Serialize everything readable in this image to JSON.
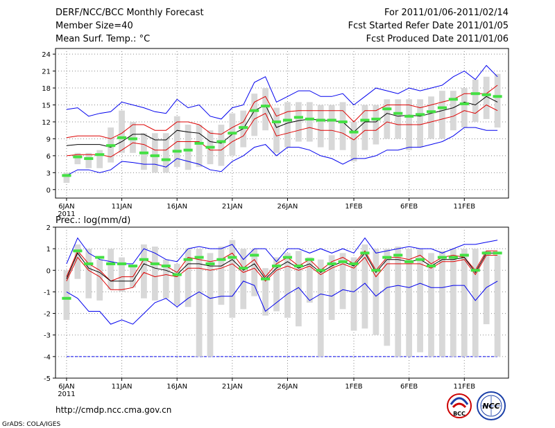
{
  "header": {
    "title": "DERF/NCC/BCC Monthly Forecast",
    "member_size": "Member Size=40",
    "variable": "Mean Surf. Temp.: °C",
    "period": "For 2011/01/06-2011/02/14",
    "start_date": "Fcst Started Refer Date 2011/01/05",
    "produced_date": "Fcst Produced Date 2011/01/06"
  },
  "footer": {
    "url": "http://cmdp.ncc.cma.gov.cn",
    "credit": "GrADS: COLA/IGES",
    "logo_bcc": "BCC",
    "logo_ncc": "NCC"
  },
  "colors": {
    "box": "#d8d8d8",
    "median": "#44e044",
    "mean": "#000000",
    "spread": "#dd0000",
    "extreme": "#0000ee",
    "grid": "#888888"
  },
  "chart_data": [
    {
      "type": "line",
      "name": "temperature",
      "title": "",
      "ylabel": "°C",
      "ylim": [
        -1.5,
        25
      ],
      "yticks": [
        0,
        3,
        6,
        9,
        12,
        15,
        18,
        21,
        24
      ],
      "x_ticks": [
        {
          "day": 0,
          "label": "6JAN",
          "sub": "2011"
        },
        {
          "day": 5,
          "label": "11JAN"
        },
        {
          "day": 10,
          "label": "16JAN"
        },
        {
          "day": 15,
          "label": "21JAN"
        },
        {
          "day": 20,
          "label": "26JAN"
        },
        {
          "day": 26,
          "label": "1FEB"
        },
        {
          "day": 31,
          "label": "6FEB"
        },
        {
          "day": 36,
          "label": "11FEB"
        }
      ],
      "xlim": [
        -1,
        40
      ],
      "days": [
        0,
        1,
        2,
        3,
        4,
        5,
        6,
        7,
        8,
        9,
        10,
        11,
        12,
        13,
        14,
        15,
        16,
        17,
        18,
        19,
        20,
        21,
        22,
        23,
        24,
        25,
        26,
        27,
        28,
        29,
        30,
        31,
        32,
        33,
        34,
        35,
        36,
        37,
        38,
        39
      ],
      "max": [
        14.2,
        14.5,
        13.0,
        13.5,
        13.8,
        15.5,
        15.0,
        14.5,
        13.8,
        13.5,
        16.0,
        14.5,
        15.0,
        13.0,
        12.5,
        14.5,
        15.0,
        19.0,
        20.0,
        15.5,
        16.5,
        17.5,
        17.5,
        16.5,
        16.5,
        17.0,
        15.0,
        16.5,
        18.0,
        17.5,
        17.0,
        18.0,
        17.5,
        18.0,
        18.5,
        20.0,
        21.0,
        19.5,
        22.0,
        20.0
      ],
      "upper": [
        9.2,
        9.5,
        9.5,
        9.5,
        9.0,
        10.0,
        11.5,
        11.5,
        10.5,
        10.5,
        12.0,
        12.0,
        11.5,
        10.0,
        9.8,
        11.0,
        12.0,
        15.5,
        16.5,
        13.0,
        13.8,
        14.0,
        14.0,
        14.0,
        14.0,
        14.0,
        12.0,
        14.0,
        14.0,
        15.0,
        15.0,
        15.0,
        14.5,
        15.0,
        15.5,
        16.0,
        17.0,
        17.0,
        17.0,
        18.5
      ],
      "mean": [
        7.8,
        8.0,
        8.0,
        8.0,
        7.5,
        8.5,
        9.8,
        9.8,
        8.8,
        8.8,
        10.5,
        10.2,
        10.0,
        8.5,
        8.2,
        9.8,
        10.8,
        14.0,
        15.0,
        11.0,
        11.8,
        12.2,
        12.5,
        12.3,
        12.2,
        12.0,
        10.2,
        12.0,
        12.0,
        13.5,
        13.0,
        13.2,
        13.0,
        13.5,
        14.0,
        14.5,
        15.5,
        15.0,
        16.5,
        15.5
      ],
      "lower": [
        6.0,
        6.2,
        6.2,
        6.2,
        5.8,
        7.0,
        8.3,
        8.0,
        7.0,
        7.0,
        8.5,
        8.5,
        8.5,
        7.0,
        7.0,
        8.5,
        9.5,
        12.5,
        13.5,
        9.5,
        10.0,
        10.5,
        11.0,
        10.5,
        10.5,
        10.0,
        8.8,
        10.5,
        10.5,
        12.0,
        11.5,
        11.5,
        11.5,
        12.0,
        12.5,
        13.0,
        14.0,
        13.5,
        15.0,
        14.0
      ],
      "min": [
        2.5,
        3.5,
        3.5,
        3.0,
        3.5,
        5.0,
        4.8,
        4.5,
        4.5,
        4.0,
        5.5,
        5.0,
        4.5,
        3.5,
        3.2,
        5.0,
        6.0,
        7.5,
        8.0,
        6.0,
        7.5,
        7.5,
        7.0,
        6.0,
        5.5,
        4.5,
        5.5,
        5.5,
        6.0,
        7.0,
        7.0,
        7.5,
        7.5,
        8.0,
        8.5,
        9.5,
        11.0,
        11.0,
        10.5,
        10.5
      ],
      "box_lo": [
        1.2,
        4.5,
        3.8,
        3.8,
        4.8,
        6.5,
        6.5,
        3.5,
        3.0,
        3.0,
        4.0,
        3.5,
        4.0,
        4.5,
        4.2,
        6.0,
        7.5,
        9.5,
        10.5,
        6.5,
        7.5,
        8.5,
        8.5,
        7.5,
        7.0,
        7.0,
        5.0,
        7.0,
        8.0,
        9.0,
        9.0,
        7.0,
        7.5,
        9.0,
        9.0,
        10.5,
        11.0,
        12.0,
        12.5,
        11.0
      ],
      "box_hi": [
        3.0,
        6.5,
        6.5,
        7.0,
        11.0,
        14.0,
        12.0,
        10.0,
        10.0,
        10.0,
        13.0,
        11.5,
        11.5,
        10.5,
        11.5,
        13.5,
        14.0,
        17.0,
        18.0,
        14.5,
        15.5,
        15.5,
        15.5,
        15.0,
        15.0,
        15.5,
        12.0,
        15.0,
        15.0,
        16.0,
        16.0,
        16.0,
        16.0,
        16.5,
        17.5,
        17.5,
        18.0,
        19.5,
        20.0,
        20.5
      ],
      "median": [
        2.5,
        5.8,
        5.5,
        6.2,
        7.8,
        9.2,
        9.0,
        6.5,
        6.0,
        5.3,
        6.8,
        7.0,
        8.2,
        7.5,
        8.5,
        10.0,
        11.0,
        14.0,
        14.8,
        12.0,
        12.3,
        12.8,
        12.5,
        12.3,
        12.3,
        12.0,
        10.2,
        12.3,
        12.5,
        14.3,
        13.5,
        13.0,
        13.3,
        13.8,
        14.5,
        16.0,
        15.2,
        17.0,
        16.8,
        16.5
      ]
    },
    {
      "type": "line",
      "name": "precipitation",
      "title": "Prec.: log(mm/d)",
      "ylabel": "log(mm/d)",
      "ylim": [
        -5,
        2
      ],
      "yticks": [
        -5,
        -4,
        -3,
        -2,
        -1,
        0,
        1,
        2
      ],
      "x_ticks": [
        {
          "day": 0,
          "label": "6JAN",
          "sub": "2011"
        },
        {
          "day": 5,
          "label": "11JAN"
        },
        {
          "day": 10,
          "label": "16JAN"
        },
        {
          "day": 15,
          "label": "21JAN"
        },
        {
          "day": 20,
          "label": "26JAN"
        },
        {
          "day": 26,
          "label": "1FEB"
        },
        {
          "day": 31,
          "label": "6FEB"
        },
        {
          "day": 36,
          "label": "11FEB"
        }
      ],
      "xlim": [
        -1,
        40
      ],
      "baseline": -4,
      "days": [
        0,
        1,
        2,
        3,
        4,
        5,
        6,
        7,
        8,
        9,
        10,
        11,
        12,
        13,
        14,
        15,
        16,
        17,
        18,
        19,
        20,
        21,
        22,
        23,
        24,
        25,
        26,
        27,
        28,
        29,
        30,
        31,
        32,
        33,
        34,
        35,
        36,
        37,
        38,
        39
      ],
      "max": [
        0.3,
        1.5,
        0.8,
        0.5,
        0.4,
        0.3,
        0.3,
        1.0,
        0.8,
        0.5,
        0.4,
        1.0,
        1.1,
        1.0,
        1.0,
        1.2,
        0.5,
        1.0,
        1.0,
        0.4,
        1.0,
        1.0,
        0.8,
        1.0,
        0.8,
        1.0,
        0.8,
        1.5,
        0.8,
        0.9,
        1.0,
        1.1,
        1.0,
        1.0,
        0.8,
        1.0,
        1.2,
        1.2,
        1.3,
        1.4
      ],
      "upper": [
        -0.3,
        0.9,
        0.3,
        0.0,
        -0.5,
        -0.3,
        -0.3,
        0.5,
        0.3,
        0.2,
        -0.1,
        0.6,
        0.5,
        0.4,
        0.5,
        0.8,
        0.1,
        0.5,
        -0.3,
        0.3,
        0.6,
        0.2,
        0.5,
        0.0,
        0.4,
        0.6,
        0.3,
        0.9,
        0.0,
        0.6,
        0.6,
        0.5,
        0.7,
        0.3,
        0.6,
        0.7,
        0.6,
        0.0,
        0.9,
        0.9
      ],
      "mean": [
        -0.4,
        0.8,
        0.1,
        -0.1,
        -0.5,
        -0.5,
        -0.5,
        0.3,
        0.1,
        0.0,
        -0.2,
        0.3,
        0.3,
        0.2,
        0.2,
        0.5,
        0.0,
        0.3,
        -0.4,
        0.1,
        0.4,
        0.1,
        0.3,
        -0.1,
        0.2,
        0.4,
        0.2,
        0.8,
        -0.1,
        0.5,
        0.5,
        0.4,
        0.5,
        0.2,
        0.5,
        0.5,
        0.6,
        -0.1,
        0.8,
        0.8
      ],
      "lower": [
        -0.5,
        0.6,
        0.0,
        -0.3,
        -0.9,
        -0.9,
        -0.8,
        -0.1,
        -0.3,
        -0.2,
        -0.3,
        0.1,
        0.1,
        0.0,
        0.1,
        0.3,
        -0.1,
        0.1,
        -0.5,
        0.0,
        0.2,
        0.0,
        0.2,
        -0.2,
        0.1,
        0.3,
        0.1,
        0.6,
        -0.3,
        0.3,
        0.3,
        0.3,
        0.3,
        0.1,
        0.4,
        0.4,
        0.5,
        -0.2,
        0.7,
        0.7
      ],
      "min": [
        -1.0,
        -1.3,
        -1.9,
        -1.9,
        -2.5,
        -2.3,
        -2.5,
        -2.0,
        -1.5,
        -1.3,
        -1.7,
        -1.3,
        -1.0,
        -1.3,
        -1.2,
        -1.2,
        -0.5,
        -0.7,
        -1.9,
        -1.5,
        -1.1,
        -0.8,
        -1.4,
        -1.1,
        -1.2,
        -0.9,
        -1.0,
        -0.6,
        -1.2,
        -0.8,
        -0.7,
        -0.8,
        -0.6,
        -0.8,
        -0.8,
        -0.7,
        -0.7,
        -1.4,
        -0.8,
        -0.5
      ],
      "box_lo": [
        -2.3,
        -0.4,
        -1.3,
        -1.4,
        -0.9,
        -1.0,
        -0.8,
        -1.3,
        -1.4,
        -1.3,
        -1.6,
        -1.7,
        -4.0,
        -4.0,
        -1.6,
        -2.2,
        -1.8,
        -1.2,
        -2.1,
        -1.9,
        -2.2,
        -2.6,
        -1.5,
        -4.0,
        -2.3,
        -1.8,
        -2.8,
        -2.7,
        -3.0,
        -3.5,
        -4.0,
        -4.0,
        -3.8,
        -4.0,
        -4.0,
        -4.0,
        -4.0,
        -4.0,
        -2.5,
        -4.0
      ],
      "box_hi": [
        0.0,
        1.2,
        1.0,
        0.5,
        1.0,
        0.6,
        0.2,
        1.2,
        1.1,
        0.5,
        0.3,
        1.0,
        1.0,
        0.8,
        1.1,
        1.4,
        1.0,
        1.0,
        0.1,
        0.6,
        0.8,
        0.9,
        0.6,
        0.5,
        0.7,
        0.8,
        0.6,
        1.2,
        1.0,
        1.0,
        1.1,
        1.0,
        1.0,
        0.8,
        0.9,
        1.0,
        1.0,
        1.0,
        0.9,
        0.7
      ],
      "median": [
        -1.3,
        0.9,
        0.3,
        0.6,
        0.3,
        0.3,
        0.2,
        0.5,
        0.3,
        0.2,
        -0.2,
        0.5,
        0.6,
        0.3,
        0.5,
        0.6,
        0.1,
        0.7,
        -0.4,
        0.2,
        0.6,
        0.2,
        0.5,
        0.0,
        0.3,
        0.4,
        0.3,
        0.8,
        0.0,
        0.6,
        0.7,
        0.4,
        0.5,
        0.2,
        0.6,
        0.6,
        0.7,
        0.0,
        0.8,
        0.8
      ]
    }
  ]
}
